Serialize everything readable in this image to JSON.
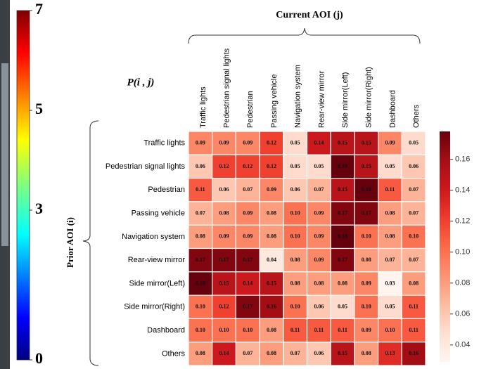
{
  "chart_data": [
    {
      "type": "heatmap",
      "title": "Current AOI (j)",
      "annotation": "P(i , j)",
      "y_label": "Prior AOI (i)",
      "x_categories": [
        "Traffic lights",
        "Pedestrian signal lights",
        "Pedestrian",
        "Passing vehicle",
        "Navigation system",
        "Rear-view mirror",
        "Side mirror(Left)",
        "Side mirror(Right)",
        "Dashboard",
        "Others"
      ],
      "y_categories": [
        "Traffic lights",
        "Pedestrian signal lights",
        "Pedestrian",
        "Passing vehicle",
        "Navigation system",
        "Rear-view mirror",
        "Side mirror(Left)",
        "Side mirror(Right)",
        "Dashboard",
        "Others"
      ],
      "z": [
        [
          0.09,
          0.09,
          0.09,
          0.12,
          0.05,
          0.14,
          0.15,
          0.15,
          0.09,
          0.05
        ],
        [
          0.06,
          0.12,
          0.12,
          0.12,
          0.05,
          0.05,
          0.19,
          0.15,
          0.05,
          0.06
        ],
        [
          0.11,
          0.06,
          0.07,
          0.09,
          0.06,
          0.07,
          0.15,
          0.18,
          0.11,
          0.07
        ],
        [
          0.07,
          0.08,
          0.09,
          0.08,
          0.1,
          0.09,
          0.17,
          0.17,
          0.08,
          0.07
        ],
        [
          0.08,
          0.09,
          0.09,
          0.08,
          0.1,
          0.09,
          0.18,
          0.1,
          0.08,
          0.1
        ],
        [
          0.17,
          0.17,
          0.17,
          0.04,
          0.08,
          0.09,
          0.17,
          0.08,
          0.07,
          0.07
        ],
        [
          0.18,
          0.15,
          0.14,
          0.15,
          0.08,
          0.08,
          0.08,
          0.09,
          0.03,
          0.08
        ],
        [
          0.1,
          0.12,
          0.17,
          0.16,
          0.1,
          0.06,
          0.05,
          0.1,
          0.05,
          0.11
        ],
        [
          0.1,
          0.1,
          0.1,
          0.08,
          0.11,
          0.11,
          0.11,
          0.09,
          0.1,
          0.11
        ],
        [
          0.08,
          0.14,
          0.07,
          0.08,
          0.07,
          0.06,
          0.15,
          0.08,
          0.13,
          0.16
        ]
      ],
      "value_labels": [
        [
          "0.09",
          "0.09",
          "0.09",
          "0.12",
          "0.05",
          "0.14",
          "0.15",
          "0.15",
          "0.09",
          "0.05"
        ],
        [
          "0.06",
          "0.12",
          "0.12",
          "0.12",
          "0.05",
          "0.05",
          "0.19",
          "0.15",
          "0.05",
          "0.06"
        ],
        [
          "0.11",
          "0.06",
          "0.07",
          "0.09",
          "0.06",
          "0.07",
          "0.15",
          "0.18",
          "0.11",
          "0.07"
        ],
        [
          "0.07",
          "0.08",
          "0.09",
          "0.08",
          "0.10",
          "0.09",
          "0.17",
          "0.17",
          "0.08",
          "0.07"
        ],
        [
          "0.08",
          "0.09",
          "0.09",
          "0.08",
          "0.10",
          "0.09",
          "0.18",
          "0.10",
          "0.08",
          "0.10"
        ],
        [
          "0.17",
          "0.17",
          "0.17",
          "0.04",
          "0.08",
          "0.09",
          "0.17",
          "0.08",
          "0.07",
          "0.07"
        ],
        [
          "0.18",
          "0.15",
          "0.14",
          "0.15",
          "0.08",
          "0.08",
          "0.08",
          "0.09",
          "0.03",
          "0.08"
        ],
        [
          "0.10",
          "0.12",
          "0.17",
          "0.16",
          "0.10",
          "0.06",
          "0.05",
          "0.10",
          "0.05",
          "0.11"
        ],
        [
          "0.10",
          "0.10",
          "0.10",
          "0.08",
          "0.11",
          "0.11",
          "0.11",
          "0.09",
          "0.10",
          "0.11"
        ],
        [
          "0.08",
          "0.14",
          "0.07",
          "0.08",
          "0.07",
          "0.06",
          "0.15",
          "0.08",
          "0.13",
          "0.16"
        ]
      ],
      "colormap": "Reds",
      "zlim": [
        0.029,
        0.178
      ],
      "zticks": [
        0.04,
        0.06,
        0.08,
        {
          "value": 0.1,
          "label": "0.10"
        },
        0.12,
        0.14,
        0.16
      ]
    },
    {
      "type": "colorbar",
      "colormap": "jet",
      "ylim": [
        0,
        7
      ],
      "yticks": [
        0,
        3,
        5,
        7
      ]
    }
  ]
}
